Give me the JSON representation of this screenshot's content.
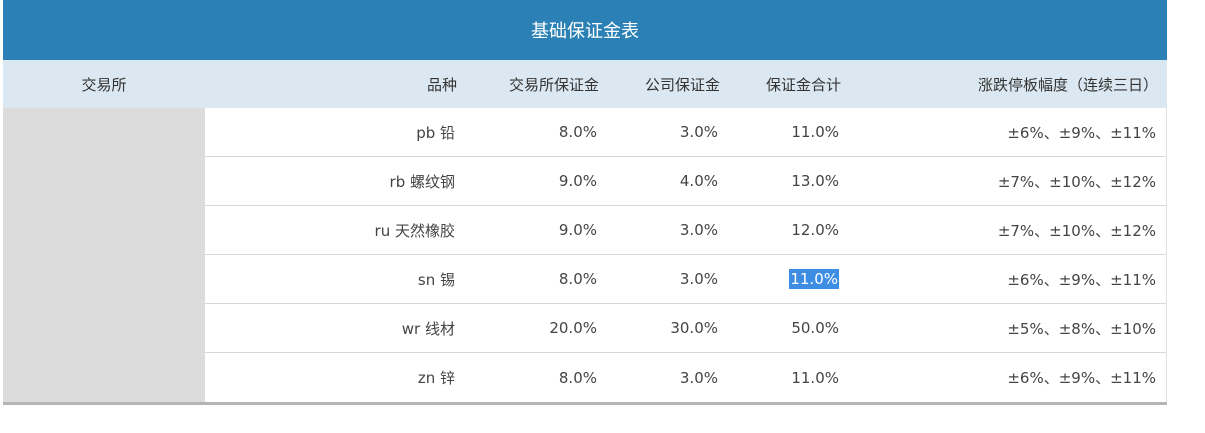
{
  "title": "基础保证金表",
  "headers": {
    "exchange": "交易所",
    "variety": "品种",
    "exchange_margin": "交易所保证金",
    "company_margin": "公司保证金",
    "total_margin": "保证金合计",
    "limit": "涨跌停板幅度（连续三日）"
  },
  "rows": [
    {
      "variety": "pb 铅",
      "exchange_margin": "8.0%",
      "company_margin": "3.0%",
      "total_margin": "11.0%",
      "limit": "±6%、±9%、±11%"
    },
    {
      "variety": "rb 螺纹钢",
      "exchange_margin": "9.0%",
      "company_margin": "4.0%",
      "total_margin": "13.0%",
      "limit": "±7%、±10%、±12%"
    },
    {
      "variety": "ru 天然橡胶",
      "exchange_margin": "9.0%",
      "company_margin": "3.0%",
      "total_margin": "12.0%",
      "limit": "±7%、±10%、±12%"
    },
    {
      "variety": "sn 锡",
      "exchange_margin": "8.0%",
      "company_margin": "3.0%",
      "total_margin": "11.0%",
      "limit": "±6%、±9%、±11%"
    },
    {
      "variety": "wr 线材",
      "exchange_margin": "20.0%",
      "company_margin": "30.0%",
      "total_margin": "50.0%",
      "limit": "±5%、±8%、±10%"
    },
    {
      "variety": "zn 锌",
      "exchange_margin": "8.0%",
      "company_margin": "3.0%",
      "total_margin": "11.0%",
      "limit": "±6%、±9%、±11%"
    }
  ],
  "selection_color": "#3d8ee3"
}
